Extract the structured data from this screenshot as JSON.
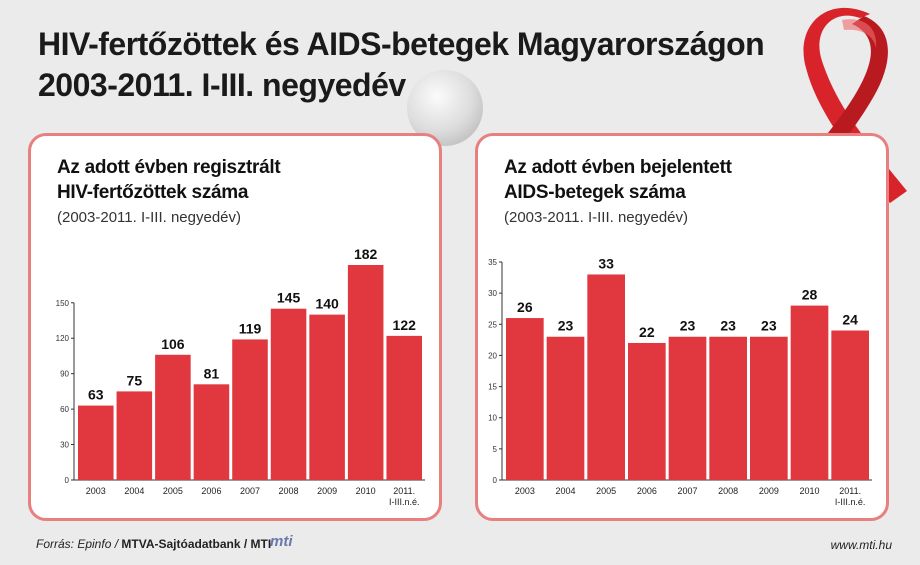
{
  "title": {
    "line1": "HIV-fertőzöttek és AIDS-betegek Magyarországon",
    "line2": "2003-2011. I-III. negyedév"
  },
  "colors": {
    "bar": "#e0383e",
    "panel_border": "#e88080",
    "background": "#ebebeb",
    "ribbon": "#d8232a"
  },
  "chart_data": [
    {
      "type": "bar",
      "title_line1": "Az adott évben regisztrált",
      "title_line2": "HIV-fertőzöttek száma",
      "subtitle": "(2003-2011. I-III. negyedév)",
      "categories": [
        "2003",
        "2004",
        "2005",
        "2006",
        "2007",
        "2008",
        "2009",
        "2010",
        "2011.|I-III.n.é."
      ],
      "values": [
        63,
        75,
        106,
        81,
        119,
        145,
        140,
        182,
        122
      ],
      "yticks": [
        "0",
        "30",
        "60",
        "90",
        "120",
        "150"
      ],
      "ylim": [
        0,
        182
      ],
      "grid": false
    },
    {
      "type": "bar",
      "title_line1": "Az adott évben bejelentett",
      "title_line2": "AIDS-betegek száma",
      "subtitle": "(2003-2011. I-III. negyedév)",
      "categories": [
        "2003",
        "2004",
        "2005",
        "2006",
        "2007",
        "2008",
        "2009",
        "2010",
        "2011.|I-III.n.é."
      ],
      "values": [
        26,
        23,
        33,
        22,
        23,
        23,
        23,
        28,
        24
      ],
      "yticks": [
        "0",
        "5",
        "10",
        "15",
        "20",
        "25",
        "30",
        "35"
      ],
      "ylim": [
        0,
        35
      ],
      "grid": false
    }
  ],
  "footer": {
    "source_prefix": "Forrás: Epinfo / ",
    "source_bold": "MTVA-Sajtóadatbank / MTI",
    "logo": "mti",
    "url": "www.mti.hu"
  }
}
